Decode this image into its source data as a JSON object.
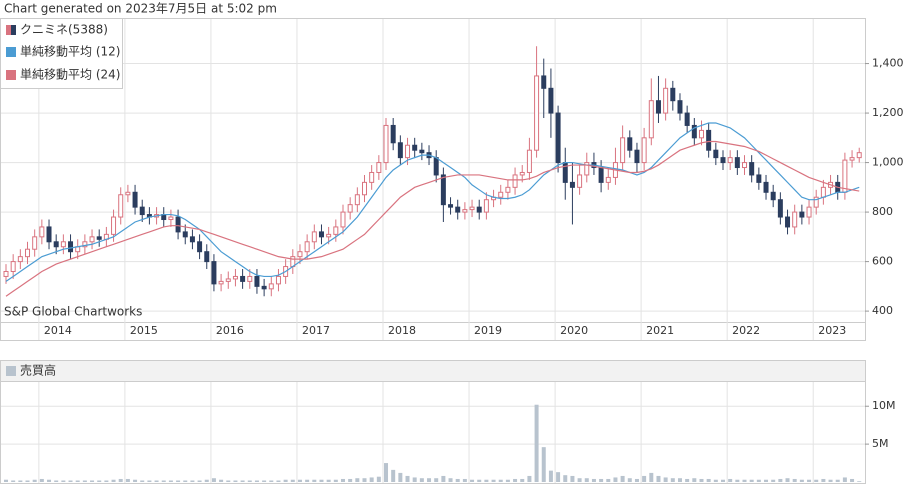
{
  "header": "Chart generated on 2023年7月5日 at 5:02 pm",
  "chart_data": [
    {
      "type": "candlestick",
      "name": "クニミネ(5388)",
      "annotation": "S&P Global Chartworks",
      "categories": [
        null,
        null,
        null,
        null,
        null,
        "2014",
        null,
        null,
        null,
        null,
        null,
        null,
        null,
        null,
        null,
        null,
        null,
        "2015",
        null,
        null,
        null,
        null,
        null,
        null,
        null,
        null,
        null,
        null,
        null,
        "2016",
        null,
        null,
        null,
        null,
        null,
        null,
        null,
        null,
        null,
        null,
        null,
        "2017",
        null,
        null,
        null,
        null,
        null,
        null,
        null,
        null,
        null,
        null,
        null,
        "2018",
        null,
        null,
        null,
        null,
        null,
        null,
        null,
        null,
        null,
        null,
        null,
        "2019",
        null,
        null,
        null,
        null,
        null,
        null,
        null,
        null,
        null,
        null,
        null,
        "2020",
        null,
        null,
        null,
        null,
        null,
        null,
        null,
        null,
        null,
        null,
        null,
        "2021",
        null,
        null,
        null,
        null,
        null,
        null,
        null,
        null,
        null,
        null,
        null,
        "2022",
        null,
        null,
        null,
        null,
        null,
        null,
        null,
        null,
        null,
        null,
        null,
        "2023",
        null,
        null,
        null,
        null,
        null,
        null
      ],
      "open": [
        540,
        560,
        600,
        620,
        650,
        700,
        740,
        680,
        660,
        680,
        640,
        660,
        680,
        700,
        690,
        710,
        780,
        870,
        880,
        820,
        790,
        780,
        790,
        770,
        780,
        720,
        700,
        680,
        640,
        600,
        510,
        520,
        530,
        540,
        520,
        540,
        500,
        490,
        510,
        540,
        580,
        620,
        640,
        680,
        720,
        700,
        710,
        740,
        800,
        830,
        870,
        920,
        960,
        1000,
        1150,
        1080,
        1020,
        1070,
        1050,
        1040,
        1020,
        950,
        830,
        820,
        800,
        810,
        820,
        800,
        850,
        860,
        880,
        900,
        950,
        960,
        1050,
        1350,
        1300,
        1200,
        1000,
        920,
        900,
        950,
        1000,
        980,
        920,
        940,
        1000,
        1100,
        1050,
        1000,
        1100,
        1250,
        1200,
        1300,
        1250,
        1200,
        1150,
        1100,
        1130,
        1050,
        1020,
        1000,
        1020,
        980,
        1000,
        950,
        920,
        880,
        850,
        780,
        740,
        800,
        780,
        820,
        860,
        900,
        920,
        880,
        1010,
        1020
      ],
      "high": [
        590,
        630,
        650,
        680,
        730,
        770,
        770,
        710,
        710,
        710,
        690,
        710,
        730,
        730,
        740,
        810,
        900,
        910,
        910,
        850,
        820,
        820,
        820,
        810,
        810,
        750,
        730,
        710,
        670,
        630,
        550,
        560,
        570,
        570,
        570,
        570,
        530,
        540,
        570,
        610,
        650,
        670,
        710,
        750,
        750,
        740,
        770,
        830,
        860,
        900,
        950,
        990,
        1030,
        1180,
        1180,
        1110,
        1100,
        1100,
        1080,
        1070,
        1050,
        980,
        860,
        850,
        840,
        850,
        850,
        880,
        890,
        910,
        930,
        980,
        990,
        1100,
        1470,
        1420,
        1380,
        1230,
        1060,
        1000,
        990,
        1040,
        1040,
        1010,
        980,
        1060,
        1150,
        1130,
        1080,
        1140,
        1340,
        1350,
        1340,
        1330,
        1280,
        1230,
        1180,
        1170,
        1160,
        1080,
        1050,
        1050,
        1050,
        1030,
        1030,
        980,
        950,
        910,
        880,
        810,
        830,
        830,
        850,
        890,
        930,
        950,
        950,
        1040,
        1050,
        1060
      ],
      "low": [
        510,
        530,
        570,
        590,
        620,
        670,
        650,
        630,
        630,
        610,
        610,
        630,
        650,
        660,
        660,
        680,
        750,
        840,
        790,
        760,
        750,
        750,
        740,
        740,
        690,
        670,
        650,
        610,
        570,
        480,
        480,
        490,
        500,
        490,
        490,
        470,
        460,
        460,
        480,
        510,
        550,
        590,
        610,
        650,
        670,
        670,
        680,
        710,
        770,
        800,
        840,
        890,
        930,
        970,
        1050,
        990,
        990,
        1020,
        1010,
        990,
        920,
        760,
        790,
        770,
        770,
        780,
        770,
        770,
        820,
        830,
        850,
        870,
        920,
        930,
        1020,
        1180,
        1100,
        960,
        850,
        750,
        870,
        920,
        950,
        880,
        890,
        910,
        970,
        1020,
        960,
        970,
        1070,
        1160,
        1170,
        1210,
        1170,
        1120,
        1070,
        1070,
        1020,
        990,
        970,
        970,
        950,
        950,
        920,
        890,
        850,
        820,
        750,
        710,
        710,
        750,
        750,
        790,
        830,
        870,
        850,
        850,
        980,
        1000
      ],
      "close": [
        560,
        600,
        620,
        650,
        700,
        740,
        680,
        660,
        680,
        640,
        660,
        680,
        700,
        690,
        710,
        780,
        870,
        880,
        820,
        790,
        780,
        790,
        770,
        780,
        720,
        700,
        680,
        640,
        600,
        510,
        520,
        530,
        540,
        520,
        540,
        500,
        490,
        510,
        540,
        580,
        620,
        640,
        680,
        720,
        700,
        710,
        740,
        800,
        830,
        870,
        920,
        960,
        1000,
        1150,
        1080,
        1020,
        1070,
        1050,
        1040,
        1020,
        950,
        830,
        820,
        800,
        810,
        820,
        800,
        850,
        860,
        880,
        900,
        950,
        960,
        1050,
        1350,
        1300,
        1200,
        1000,
        920,
        900,
        950,
        1000,
        980,
        920,
        940,
        1000,
        1100,
        1050,
        1000,
        1100,
        1250,
        1200,
        1300,
        1250,
        1200,
        1150,
        1100,
        1130,
        1050,
        1020,
        1000,
        1020,
        980,
        1000,
        950,
        920,
        880,
        850,
        780,
        740,
        800,
        780,
        820,
        860,
        900,
        920,
        880,
        1010,
        1020,
        1040
      ],
      "up_color": "#d9737f",
      "down_color": "#2b3d5e",
      "series": [
        {
          "name": "単純移動平均 (12)",
          "color": "#4b9cd3",
          "values": [
            520,
            540,
            560,
            580,
            600,
            620,
            630,
            640,
            650,
            655,
            660,
            665,
            670,
            680,
            690,
            700,
            720,
            740,
            760,
            770,
            780,
            785,
            790,
            790,
            785,
            770,
            750,
            730,
            700,
            670,
            640,
            620,
            600,
            580,
            560,
            545,
            540,
            540,
            545,
            560,
            580,
            600,
            620,
            640,
            660,
            680,
            700,
            720,
            750,
            780,
            820,
            860,
            900,
            940,
            970,
            990,
            1010,
            1020,
            1030,
            1030,
            1020,
            1000,
            980,
            960,
            940,
            910,
            890,
            870,
            860,
            855,
            855,
            860,
            870,
            890,
            920,
            950,
            970,
            990,
            1000,
            1000,
            995,
            990,
            990,
            985,
            980,
            975,
            970,
            960,
            950,
            960,
            980,
            1010,
            1040,
            1070,
            1100,
            1120,
            1140,
            1150,
            1160,
            1160,
            1150,
            1140,
            1120,
            1100,
            1070,
            1040,
            1010,
            980,
            950,
            920,
            890,
            860,
            850,
            850,
            860,
            870,
            880,
            880,
            890,
            900
          ]
        },
        {
          "name": "単純移動平均 (24)",
          "color": "#d9737f",
          "values": [
            460,
            480,
            500,
            520,
            540,
            560,
            575,
            590,
            600,
            610,
            620,
            630,
            640,
            650,
            660,
            670,
            680,
            690,
            700,
            710,
            720,
            730,
            740,
            745,
            745,
            740,
            735,
            730,
            720,
            710,
            700,
            690,
            680,
            670,
            660,
            650,
            640,
            630,
            620,
            615,
            610,
            610,
            610,
            615,
            620,
            630,
            640,
            650,
            670,
            690,
            710,
            740,
            770,
            800,
            830,
            860,
            880,
            900,
            910,
            920,
            930,
            940,
            945,
            950,
            950,
            950,
            950,
            945,
            940,
            935,
            930,
            930,
            930,
            935,
            945,
            960,
            970,
            980,
            985,
            990,
            990,
            990,
            985,
            980,
            975,
            970,
            965,
            960,
            960,
            965,
            975,
            990,
            1010,
            1030,
            1050,
            1060,
            1070,
            1080,
            1085,
            1085,
            1080,
            1075,
            1070,
            1065,
            1055,
            1045,
            1030,
            1015,
            1000,
            985,
            970,
            955,
            940,
            930,
            920,
            910,
            900,
            895,
            890,
            885
          ]
        }
      ],
      "ylim": [
        356,
        1580
      ],
      "yticks": [
        400,
        600,
        800,
        {
          "value": 1000,
          "label": "1,000"
        },
        {
          "value": 1200,
          "label": "1,200"
        },
        {
          "value": 1400,
          "label": "1,400"
        }
      ],
      "grid": true
    },
    {
      "type": "bar",
      "title": "売買高",
      "color": "#b8c3ce",
      "values": [
        0.3,
        0.2,
        0.2,
        0.2,
        0.3,
        0.4,
        0.3,
        0.2,
        0.2,
        0.2,
        0.2,
        0.2,
        0.2,
        0.2,
        0.2,
        0.3,
        0.4,
        0.4,
        0.3,
        0.2,
        0.2,
        0.2,
        0.2,
        0.2,
        0.2,
        0.2,
        0.2,
        0.2,
        0.3,
        0.5,
        0.3,
        0.2,
        0.2,
        0.2,
        0.2,
        0.2,
        0.2,
        0.2,
        0.2,
        0.3,
        0.3,
        0.3,
        0.3,
        0.3,
        0.3,
        0.3,
        0.3,
        0.4,
        0.4,
        0.5,
        0.5,
        0.6,
        0.7,
        2.5,
        1.6,
        1.2,
        0.8,
        0.6,
        0.5,
        0.5,
        0.5,
        0.8,
        0.5,
        0.4,
        0.4,
        0.3,
        0.3,
        0.3,
        0.3,
        0.3,
        0.3,
        0.4,
        0.4,
        0.8,
        10.2,
        4.6,
        1.5,
        1.3,
        0.9,
        0.8,
        0.5,
        0.5,
        0.4,
        0.4,
        0.4,
        0.6,
        0.8,
        0.5,
        0.4,
        0.8,
        1.2,
        0.8,
        0.6,
        0.5,
        0.5,
        0.4,
        0.5,
        0.4,
        0.4,
        0.3,
        0.3,
        0.4,
        0.3,
        0.3,
        0.3,
        0.3,
        0.3,
        0.3,
        0.4,
        0.5,
        0.4,
        0.3,
        0.3,
        0.3,
        0.4,
        0.3,
        0.3,
        0.6,
        0.4,
        0.1
      ],
      "ylim": [
        0,
        13.2
      ],
      "yticks": [
        {
          "value": 5,
          "label": "5M"
        },
        {
          "value": 10,
          "label": "10M"
        }
      ],
      "grid": true
    }
  ]
}
